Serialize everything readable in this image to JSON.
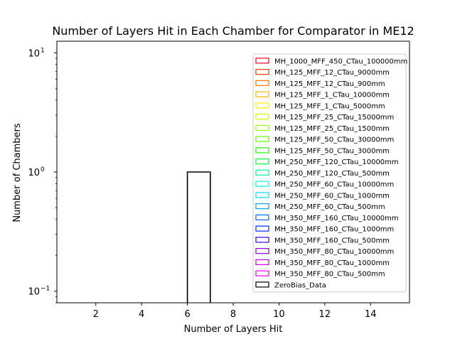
{
  "chart_data": {
    "type": "histogram",
    "title": "Number of Layers Hit in Each Chamber for Comparator in ME12",
    "xlabel": "Number of Layers Hit",
    "ylabel": "Number of Chambers",
    "xlim": [
      0.3,
      15.7
    ],
    "ylim": [
      0.08,
      12.5
    ],
    "yscale": "log",
    "grid": false,
    "legend_placement": "upper-right",
    "x_ticks": [
      2,
      4,
      6,
      8,
      10,
      12,
      14
    ],
    "x_tick_labels": [
      "2",
      "4",
      "6",
      "8",
      "10",
      "12",
      "14"
    ],
    "y_ticks": [
      0.1,
      1,
      10
    ],
    "y_tick_labels": [
      "10",
      "10",
      "10"
    ],
    "y_tick_exponents": [
      "−1",
      "0",
      "1"
    ],
    "series": [
      {
        "name": "MH_1000_MFF_450_CTau_100000mm",
        "color": "#ff0029",
        "bins": []
      },
      {
        "name": "MH_125_MFF_12_CTau_9000mm",
        "color": "#ff3a00",
        "bins": []
      },
      {
        "name": "MH_125_MFF_12_CTau_900mm",
        "color": "#ff7600",
        "bins": []
      },
      {
        "name": "MH_125_MFF_1_CTau_10000mm",
        "color": "#ffb200",
        "bins": []
      },
      {
        "name": "MH_125_MFF_1_CTau_5000mm",
        "color": "#ffee00",
        "bins": []
      },
      {
        "name": "MH_125_MFF_25_CTau_15000mm",
        "color": "#d4ff00",
        "bins": []
      },
      {
        "name": "MH_125_MFF_25_CTau_1500mm",
        "color": "#98ff00",
        "bins": []
      },
      {
        "name": "MH_125_MFF_50_CTau_30000mm",
        "color": "#5cff00",
        "bins": []
      },
      {
        "name": "MH_125_MFF_50_CTau_3000mm",
        "color": "#20ff00",
        "bins": []
      },
      {
        "name": "MH_250_MFF_120_CTau_10000mm",
        "color": "#00ff3a",
        "bins": []
      },
      {
        "name": "MH_250_MFF_120_CTau_500mm",
        "color": "#00ff94",
        "bins": []
      },
      {
        "name": "MH_250_MFF_60_CTau_10000mm",
        "color": "#00ffe0",
        "bins": []
      },
      {
        "name": "MH_250_MFF_60_CTau_1000mm",
        "color": "#00e0ff",
        "bins": []
      },
      {
        "name": "MH_250_MFF_60_CTau_500mm",
        "color": "#00a4ff",
        "bins": []
      },
      {
        "name": "MH_350_MFF_160_CTau_10000mm",
        "color": "#0068ff",
        "bins": []
      },
      {
        "name": "MH_350_MFF_160_CTau_1000mm",
        "color": "#002cff",
        "bins": []
      },
      {
        "name": "MH_350_MFF_160_CTau_500mm",
        "color": "#3a00ff",
        "bins": []
      },
      {
        "name": "MH_350_MFF_80_CTau_10000mm",
        "color": "#8c00e6",
        "bins": []
      },
      {
        "name": "MH_350_MFF_80_CTau_1000mm",
        "color": "#c800e6",
        "bins": []
      },
      {
        "name": "MH_350_MFF_80_CTau_500mm",
        "color": "#ff00ff",
        "bins": []
      },
      {
        "name": "ZeroBias_Data",
        "color": "#000000",
        "bins": [
          {
            "x0": 6,
            "x1": 7,
            "count": 1
          }
        ]
      }
    ]
  }
}
